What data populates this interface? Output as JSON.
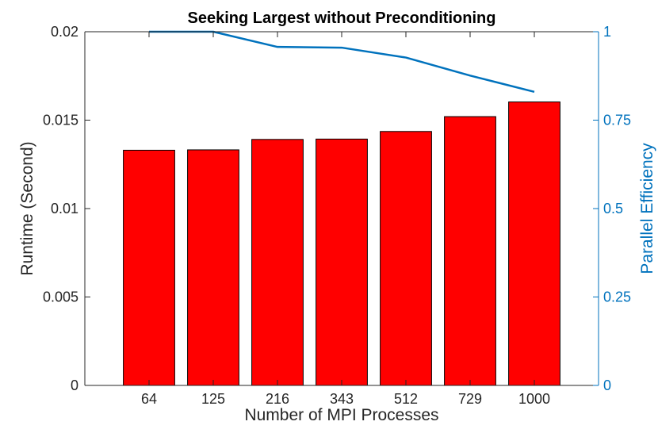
{
  "chart_data": {
    "type": "bar",
    "title": "Seeking Largest without Preconditioning",
    "xlabel": "Number of MPI Processes",
    "ylabel": "Runtime (Second)",
    "y2label": "Parallel Efficiency",
    "categories": [
      "64",
      "125",
      "216",
      "343",
      "512",
      "729",
      "1000"
    ],
    "ylim": [
      0,
      0.02
    ],
    "yticks": [
      0,
      0.005,
      0.01,
      0.015,
      0.02
    ],
    "ytick_labels": [
      "0",
      "0.005",
      "0.01",
      "0.015",
      "0.02"
    ],
    "y2lim": [
      0,
      1
    ],
    "y2ticks": [
      0,
      0.25,
      0.5,
      0.75,
      1
    ],
    "y2tick_labels": [
      "0",
      "0.25",
      "0.5",
      "0.75",
      "1"
    ],
    "grid": false,
    "series": [
      {
        "name": "",
        "axis": "left",
        "kind": "bar",
        "color": "#ff0000",
        "values": [
          0.0133,
          0.01332,
          0.01391,
          0.01393,
          0.01436,
          0.0152,
          0.01603
        ]
      },
      {
        "name": "",
        "axis": "right",
        "kind": "line",
        "color": "#0072bd",
        "values": [
          1.0,
          1.0,
          0.957,
          0.955,
          0.927,
          0.876,
          0.83
        ]
      }
    ]
  }
}
